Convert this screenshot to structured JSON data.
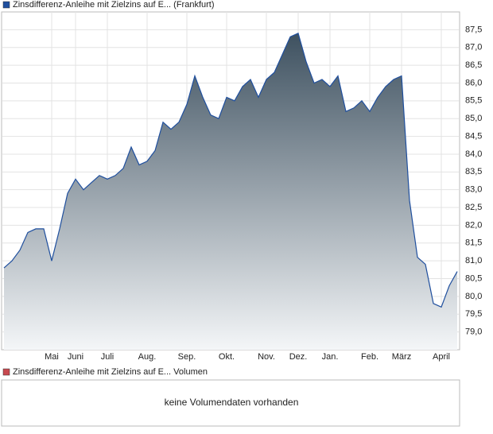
{
  "chart_data": [
    {
      "type": "area",
      "categories": [
        null,
        null,
        null,
        null,
        null,
        null,
        "Mai",
        null,
        null,
        "Juni",
        null,
        null,
        null,
        "Juli",
        null,
        null,
        null,
        null,
        "Aug.",
        null,
        null,
        null,
        null,
        "Sep.",
        null,
        null,
        null,
        null,
        "Okt.",
        null,
        null,
        null,
        null,
        "Nov.",
        null,
        null,
        null,
        "Dez.",
        null,
        null,
        null,
        "Jan.",
        null,
        null,
        null,
        null,
        "Feb.",
        null,
        null,
        null,
        "März",
        null,
        null,
        null,
        null,
        "April",
        null,
        null
      ],
      "series": [
        {
          "name": "Zinsdifferenz-Anleihe mit Zielzins auf E... (Frankfurt)",
          "color": "#1f4f9e",
          "values": [
            80.8,
            81.0,
            81.3,
            81.8,
            81.9,
            81.9,
            81.0,
            81.9,
            82.9,
            83.3,
            83.0,
            83.2,
            83.4,
            83.3,
            83.4,
            83.6,
            84.2,
            83.7,
            83.8,
            84.1,
            84.9,
            84.7,
            84.9,
            85.4,
            86.2,
            85.6,
            85.1,
            85.0,
            85.6,
            85.5,
            85.9,
            86.1,
            85.6,
            86.1,
            86.3,
            86.8,
            87.3,
            87.4,
            86.6,
            86.0,
            86.1,
            85.9,
            86.2,
            85.2,
            85.3,
            85.5,
            85.2,
            85.6,
            85.9,
            86.1,
            86.2,
            82.7,
            81.1,
            80.9,
            79.8,
            79.7,
            80.3,
            80.7
          ]
        }
      ],
      "ylim": [
        78.5,
        88.0
      ],
      "yticks": [
        {
          "value": 79.0,
          "label": "79,0"
        },
        {
          "value": 79.5,
          "label": "79,5"
        },
        {
          "value": 80.0,
          "label": "80,0"
        },
        {
          "value": 80.5,
          "label": "80,5"
        },
        {
          "value": 81.0,
          "label": "81,0"
        },
        {
          "value": 81.5,
          "label": "81,5"
        },
        {
          "value": 82.0,
          "label": "82,0"
        },
        {
          "value": 82.5,
          "label": "82,5"
        },
        {
          "value": 83.0,
          "label": "83,0"
        },
        {
          "value": 83.5,
          "label": "83,5"
        },
        {
          "value": 84.0,
          "label": "84,0"
        },
        {
          "value": 84.5,
          "label": "84,5"
        },
        {
          "value": 85.0,
          "label": "85,0"
        },
        {
          "value": 85.5,
          "label": "85,5"
        },
        {
          "value": 86.0,
          "label": "86,0"
        },
        {
          "value": 86.5,
          "label": "86,5"
        },
        {
          "value": 87.0,
          "label": "87,0"
        },
        {
          "value": 87.5,
          "label": "87,5"
        }
      ],
      "grid": true
    },
    {
      "type": "volume",
      "series": [
        {
          "name": "Zinsdifferenz-Anleihe mit Zielzins auf E... Volumen",
          "color": "#c8494f",
          "values": []
        }
      ],
      "annotation": "keine Volumendaten vorhanden"
    }
  ]
}
